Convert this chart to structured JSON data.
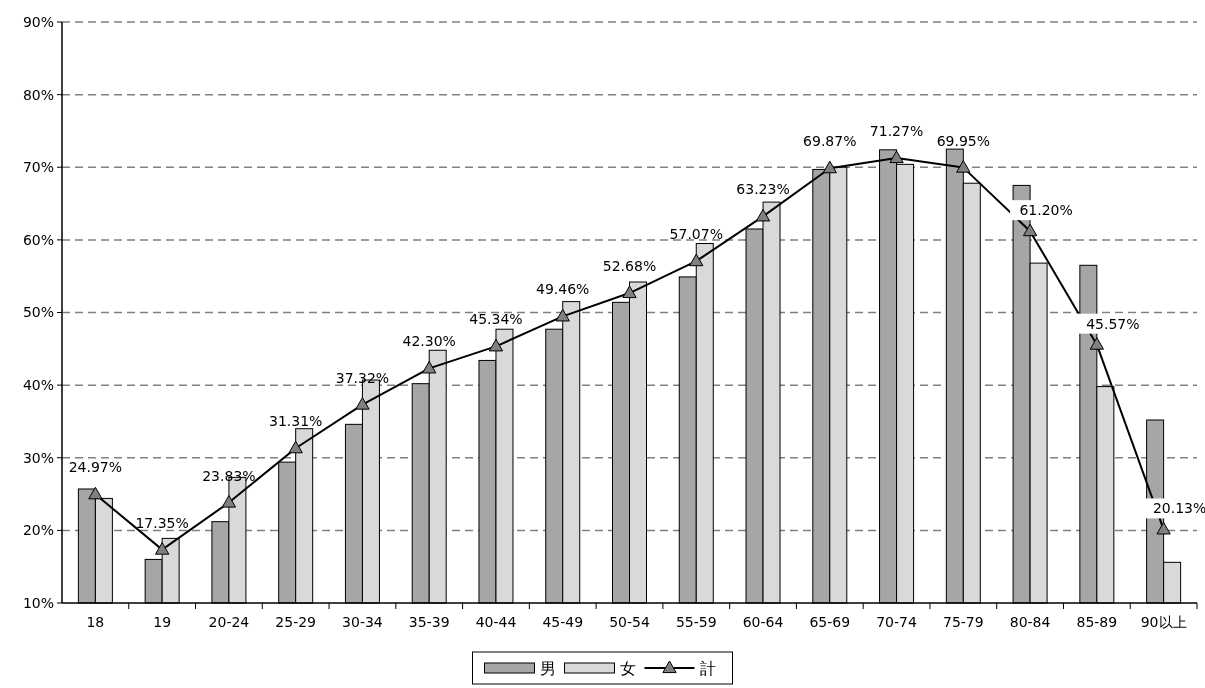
{
  "chart_data": {
    "type": "bar",
    "categories": [
      "18",
      "19",
      "20-24",
      "25-29",
      "30-34",
      "35-39",
      "40-44",
      "45-49",
      "50-54",
      "55-59",
      "60-64",
      "65-69",
      "70-74",
      "75-79",
      "80-84",
      "85-89",
      "90以上"
    ],
    "series": [
      {
        "name": "男",
        "color": "#a6a6a6",
        "values": [
          25.7,
          16.0,
          21.2,
          29.4,
          34.6,
          40.2,
          43.4,
          47.7,
          51.4,
          54.9,
          61.5,
          69.7,
          72.4,
          72.5,
          67.5,
          56.5,
          35.2
        ]
      },
      {
        "name": "女",
        "color": "#d9d9d9",
        "values": [
          24.4,
          18.9,
          27.3,
          34.0,
          40.7,
          44.8,
          47.7,
          51.5,
          54.2,
          59.5,
          65.2,
          70.0,
          70.4,
          67.8,
          56.8,
          39.8,
          15.6
        ]
      },
      {
        "name": "計",
        "type": "line",
        "color": "#000000",
        "marker": "triangle",
        "values": [
          24.97,
          17.35,
          23.83,
          31.31,
          37.32,
          42.3,
          45.34,
          49.46,
          52.68,
          57.07,
          63.23,
          69.87,
          71.27,
          69.95,
          61.2,
          45.57,
          20.13
        ],
        "value_labels": [
          "24.97%",
          "17.35%",
          "23.83%",
          "31.31%",
          "37.32%",
          "42.30%",
          "45.34%",
          "49.46%",
          "52.68%",
          "57.07%",
          "63.23%",
          "69.87%",
          "71.27%",
          "69.95%",
          "61.20%",
          "45.57%",
          "20.13%"
        ]
      }
    ],
    "ylim": [
      10,
      90
    ],
    "yticks": [
      {
        "value": 10,
        "label": "10%"
      },
      {
        "value": 20,
        "label": "20%"
      },
      {
        "value": 30,
        "label": "30%"
      },
      {
        "value": 40,
        "label": "40%"
      },
      {
        "value": 50,
        "label": "50%"
      },
      {
        "value": 60,
        "label": "60%"
      },
      {
        "value": 70,
        "label": "70%"
      },
      {
        "value": 80,
        "label": "80%"
      },
      {
        "value": 90,
        "label": "90%"
      }
    ],
    "grid": "y",
    "legend": "bottom"
  }
}
